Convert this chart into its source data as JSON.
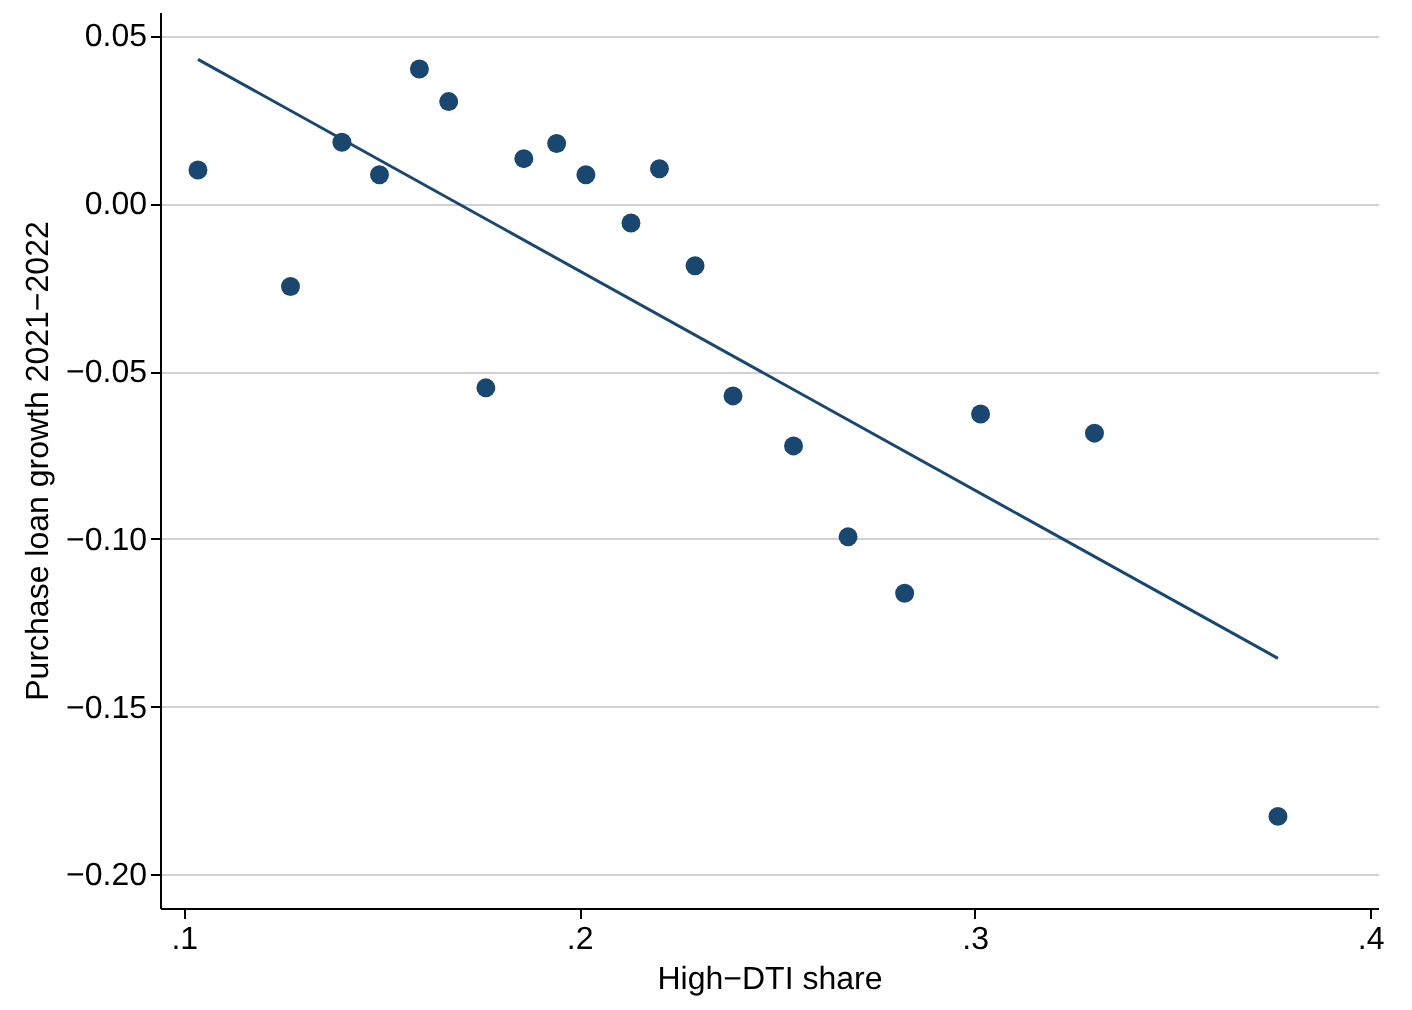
{
  "chart_data": {
    "type": "scatter",
    "xlabel": "High−DTI share",
    "ylabel": "Purchase loan growth 2021−2022",
    "xlim": [
      0.094,
      0.402
    ],
    "ylim": [
      -0.21,
      0.057
    ],
    "xticks": [
      {
        "value": 0.1,
        "label": ".1"
      },
      {
        "value": 0.2,
        "label": ".2"
      },
      {
        "value": 0.3,
        "label": ".3"
      },
      {
        "value": 0.4,
        "label": ".4"
      }
    ],
    "yticks": [
      {
        "value": 0.05,
        "label": "0.05"
      },
      {
        "value": 0,
        "label": "0.00"
      },
      {
        "value": -0.05,
        "label": "−0.05"
      },
      {
        "value": -0.1,
        "label": "−0.10"
      },
      {
        "value": -0.15,
        "label": "−0.15"
      },
      {
        "value": -0.2,
        "label": "−0.20"
      }
    ],
    "grid": "y",
    "series": [
      {
        "marker": "circle",
        "color": "#1a476f",
        "x": [
          0.1036,
          0.127,
          0.14,
          0.1495,
          0.1596,
          0.167,
          0.1764,
          0.186,
          0.1943,
          0.2017,
          0.2131,
          0.2203,
          0.2293,
          0.2389,
          0.2542,
          0.268,
          0.2823,
          0.3015,
          0.3303,
          0.3767
        ],
        "values": [
          0.0099,
          -0.0248,
          0.0182,
          0.0085,
          0.04,
          0.0303,
          -0.055,
          0.0133,
          0.0178,
          0.0085,
          -0.0059,
          0.0103,
          -0.0186,
          -0.0574,
          -0.0723,
          -0.0994,
          -0.1162,
          -0.0628,
          -0.0685,
          -0.1827
        ]
      },
      {
        "type": "line",
        "color": "#1a476f",
        "x": [
          0.1036,
          0.3767
        ],
        "values": [
          0.0429,
          -0.1356
        ]
      }
    ]
  }
}
